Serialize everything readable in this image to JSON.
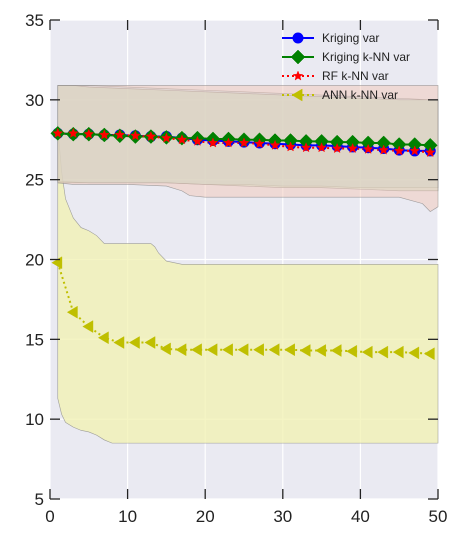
{
  "chart_data": {
    "type": "line",
    "title": "",
    "xlabel": "",
    "ylabel": "",
    "xlim": [
      0,
      50
    ],
    "ylim": [
      5,
      35
    ],
    "xticks": [
      0,
      10,
      20,
      30,
      40,
      50
    ],
    "yticks": [
      5,
      10,
      15,
      20,
      25,
      30,
      35
    ],
    "grid": true,
    "legend_position": "top-right",
    "colors": {
      "background": "#eaeaf2",
      "grid": "#ffffff",
      "kriging": "#0000ff",
      "kriging_knn": "#008000",
      "rf_knn": "#ff0000",
      "ann_knn": "#bfbf00",
      "band_kriging": "#b7d9e8",
      "band_kriging_knn": "#bfe3bf",
      "band_rf_knn": "#f2c7b8",
      "band_ann_knn": "#f2f2b0"
    },
    "series": [
      {
        "name": "Kriging var",
        "color": "#0000ff",
        "marker": "circle",
        "linestyle": "solid",
        "x": [
          1,
          3,
          5,
          7,
          9,
          11,
          13,
          15,
          17,
          19,
          21,
          23,
          25,
          27,
          29,
          31,
          33,
          35,
          37,
          39,
          41,
          43,
          45,
          47,
          49
        ],
        "y": [
          27.9,
          27.85,
          27.85,
          27.8,
          27.8,
          27.75,
          27.7,
          27.7,
          27.6,
          27.5,
          27.45,
          27.4,
          27.35,
          27.3,
          27.25,
          27.2,
          27.15,
          27.15,
          27.1,
          27.05,
          27.0,
          26.95,
          26.85,
          26.8,
          26.8
        ],
        "band": {
          "x": [
            1,
            3,
            5,
            10,
            15,
            20,
            25,
            30,
            35,
            40,
            45,
            49,
            50
          ],
          "lower": [
            24.9,
            24.85,
            24.8,
            24.8,
            24.8,
            24.7,
            24.7,
            24.6,
            24.6,
            24.5,
            24.5,
            24.5,
            24.5
          ],
          "upper": [
            30.9,
            30.9,
            30.9,
            30.8,
            30.7,
            30.6,
            30.5,
            30.4,
            30.3,
            30.2,
            30.1,
            30.0,
            30.0
          ]
        }
      },
      {
        "name": "Kriging k-NN var",
        "color": "#008000",
        "marker": "diamond",
        "linestyle": "solid",
        "x": [
          1,
          3,
          5,
          7,
          9,
          11,
          13,
          15,
          17,
          19,
          21,
          23,
          25,
          27,
          29,
          31,
          33,
          35,
          37,
          39,
          41,
          43,
          45,
          47,
          49
        ],
        "y": [
          27.9,
          27.85,
          27.85,
          27.8,
          27.75,
          27.7,
          27.7,
          27.65,
          27.6,
          27.6,
          27.55,
          27.55,
          27.5,
          27.5,
          27.45,
          27.45,
          27.4,
          27.4,
          27.35,
          27.35,
          27.3,
          27.3,
          27.2,
          27.2,
          27.15
        ],
        "band": {
          "x": [
            1,
            3,
            5,
            10,
            15,
            20,
            25,
            30,
            35,
            40,
            45,
            49,
            50
          ],
          "lower": [
            24.8,
            24.8,
            24.8,
            24.8,
            24.8,
            24.7,
            24.6,
            24.5,
            24.5,
            24.4,
            24.3,
            24.3,
            24.3
          ],
          "upper": [
            30.9,
            30.9,
            30.8,
            30.7,
            30.6,
            30.5,
            30.4,
            30.3,
            30.2,
            30.1,
            30.0,
            30.0,
            30.0
          ]
        }
      },
      {
        "name": "RF k-NN var",
        "color": "#ff0000",
        "marker": "star",
        "linestyle": "dotted",
        "x": [
          1,
          3,
          5,
          7,
          9,
          11,
          13,
          15,
          17,
          19,
          21,
          23,
          25,
          27,
          29,
          31,
          33,
          35,
          37,
          39,
          41,
          43,
          45,
          47,
          49
        ],
        "y": [
          27.9,
          27.9,
          27.85,
          27.8,
          27.8,
          27.75,
          27.7,
          27.6,
          27.5,
          27.4,
          27.3,
          27.3,
          27.3,
          27.25,
          27.15,
          27.05,
          27.0,
          27.0,
          26.95,
          26.95,
          26.9,
          26.85,
          26.8,
          26.8,
          26.7
        ],
        "band": {
          "x": [
            1,
            3,
            5,
            10,
            15,
            17,
            18,
            20,
            25,
            30,
            35,
            40,
            45,
            48,
            49,
            50
          ],
          "lower": [
            24.8,
            24.7,
            24.7,
            24.7,
            24.6,
            24.3,
            24.0,
            23.9,
            23.9,
            23.9,
            23.9,
            23.9,
            23.9,
            23.5,
            23.0,
            23.3
          ],
          "upper": [
            30.9,
            30.9,
            30.9,
            30.9,
            30.9,
            30.9,
            30.9,
            30.9,
            30.9,
            30.9,
            30.9,
            30.9,
            30.9,
            30.9,
            30.9,
            30.9
          ]
        }
      },
      {
        "name": "ANN k-NN var",
        "color": "#bfbf00",
        "marker": "triangle-left",
        "linestyle": "dotted",
        "x": [
          1,
          3,
          5,
          7,
          9,
          11,
          13,
          15,
          17,
          19,
          21,
          23,
          25,
          27,
          29,
          31,
          33,
          35,
          37,
          39,
          41,
          43,
          45,
          47,
          49
        ],
        "y": [
          19.8,
          16.7,
          15.8,
          15.1,
          14.8,
          14.8,
          14.8,
          14.4,
          14.35,
          14.35,
          14.35,
          14.35,
          14.35,
          14.35,
          14.35,
          14.35,
          14.3,
          14.3,
          14.3,
          14.25,
          14.2,
          14.2,
          14.2,
          14.15,
          14.1
        ],
        "band": {
          "x": [
            1,
            1.5,
            2,
            3,
            4,
            5,
            6,
            7,
            8,
            9,
            10,
            12,
            13,
            13.5,
            14,
            15,
            17,
            20,
            25,
            30,
            35,
            40,
            45,
            50
          ],
          "lower": [
            11.3,
            10.3,
            9.8,
            9.5,
            9.3,
            9.2,
            9.0,
            8.7,
            8.5,
            8.5,
            8.5,
            8.5,
            8.5,
            8.5,
            8.5,
            8.5,
            8.5,
            8.5,
            8.5,
            8.5,
            8.5,
            8.5,
            8.5,
            8.5
          ],
          "upper": [
            28.3,
            25.5,
            23.8,
            22.6,
            22.0,
            21.8,
            21.5,
            21.0,
            21.0,
            21.0,
            21.0,
            21.0,
            21.0,
            20.8,
            20.4,
            19.9,
            19.7,
            19.7,
            19.7,
            19.7,
            19.7,
            19.7,
            19.7,
            19.7
          ]
        }
      }
    ]
  }
}
